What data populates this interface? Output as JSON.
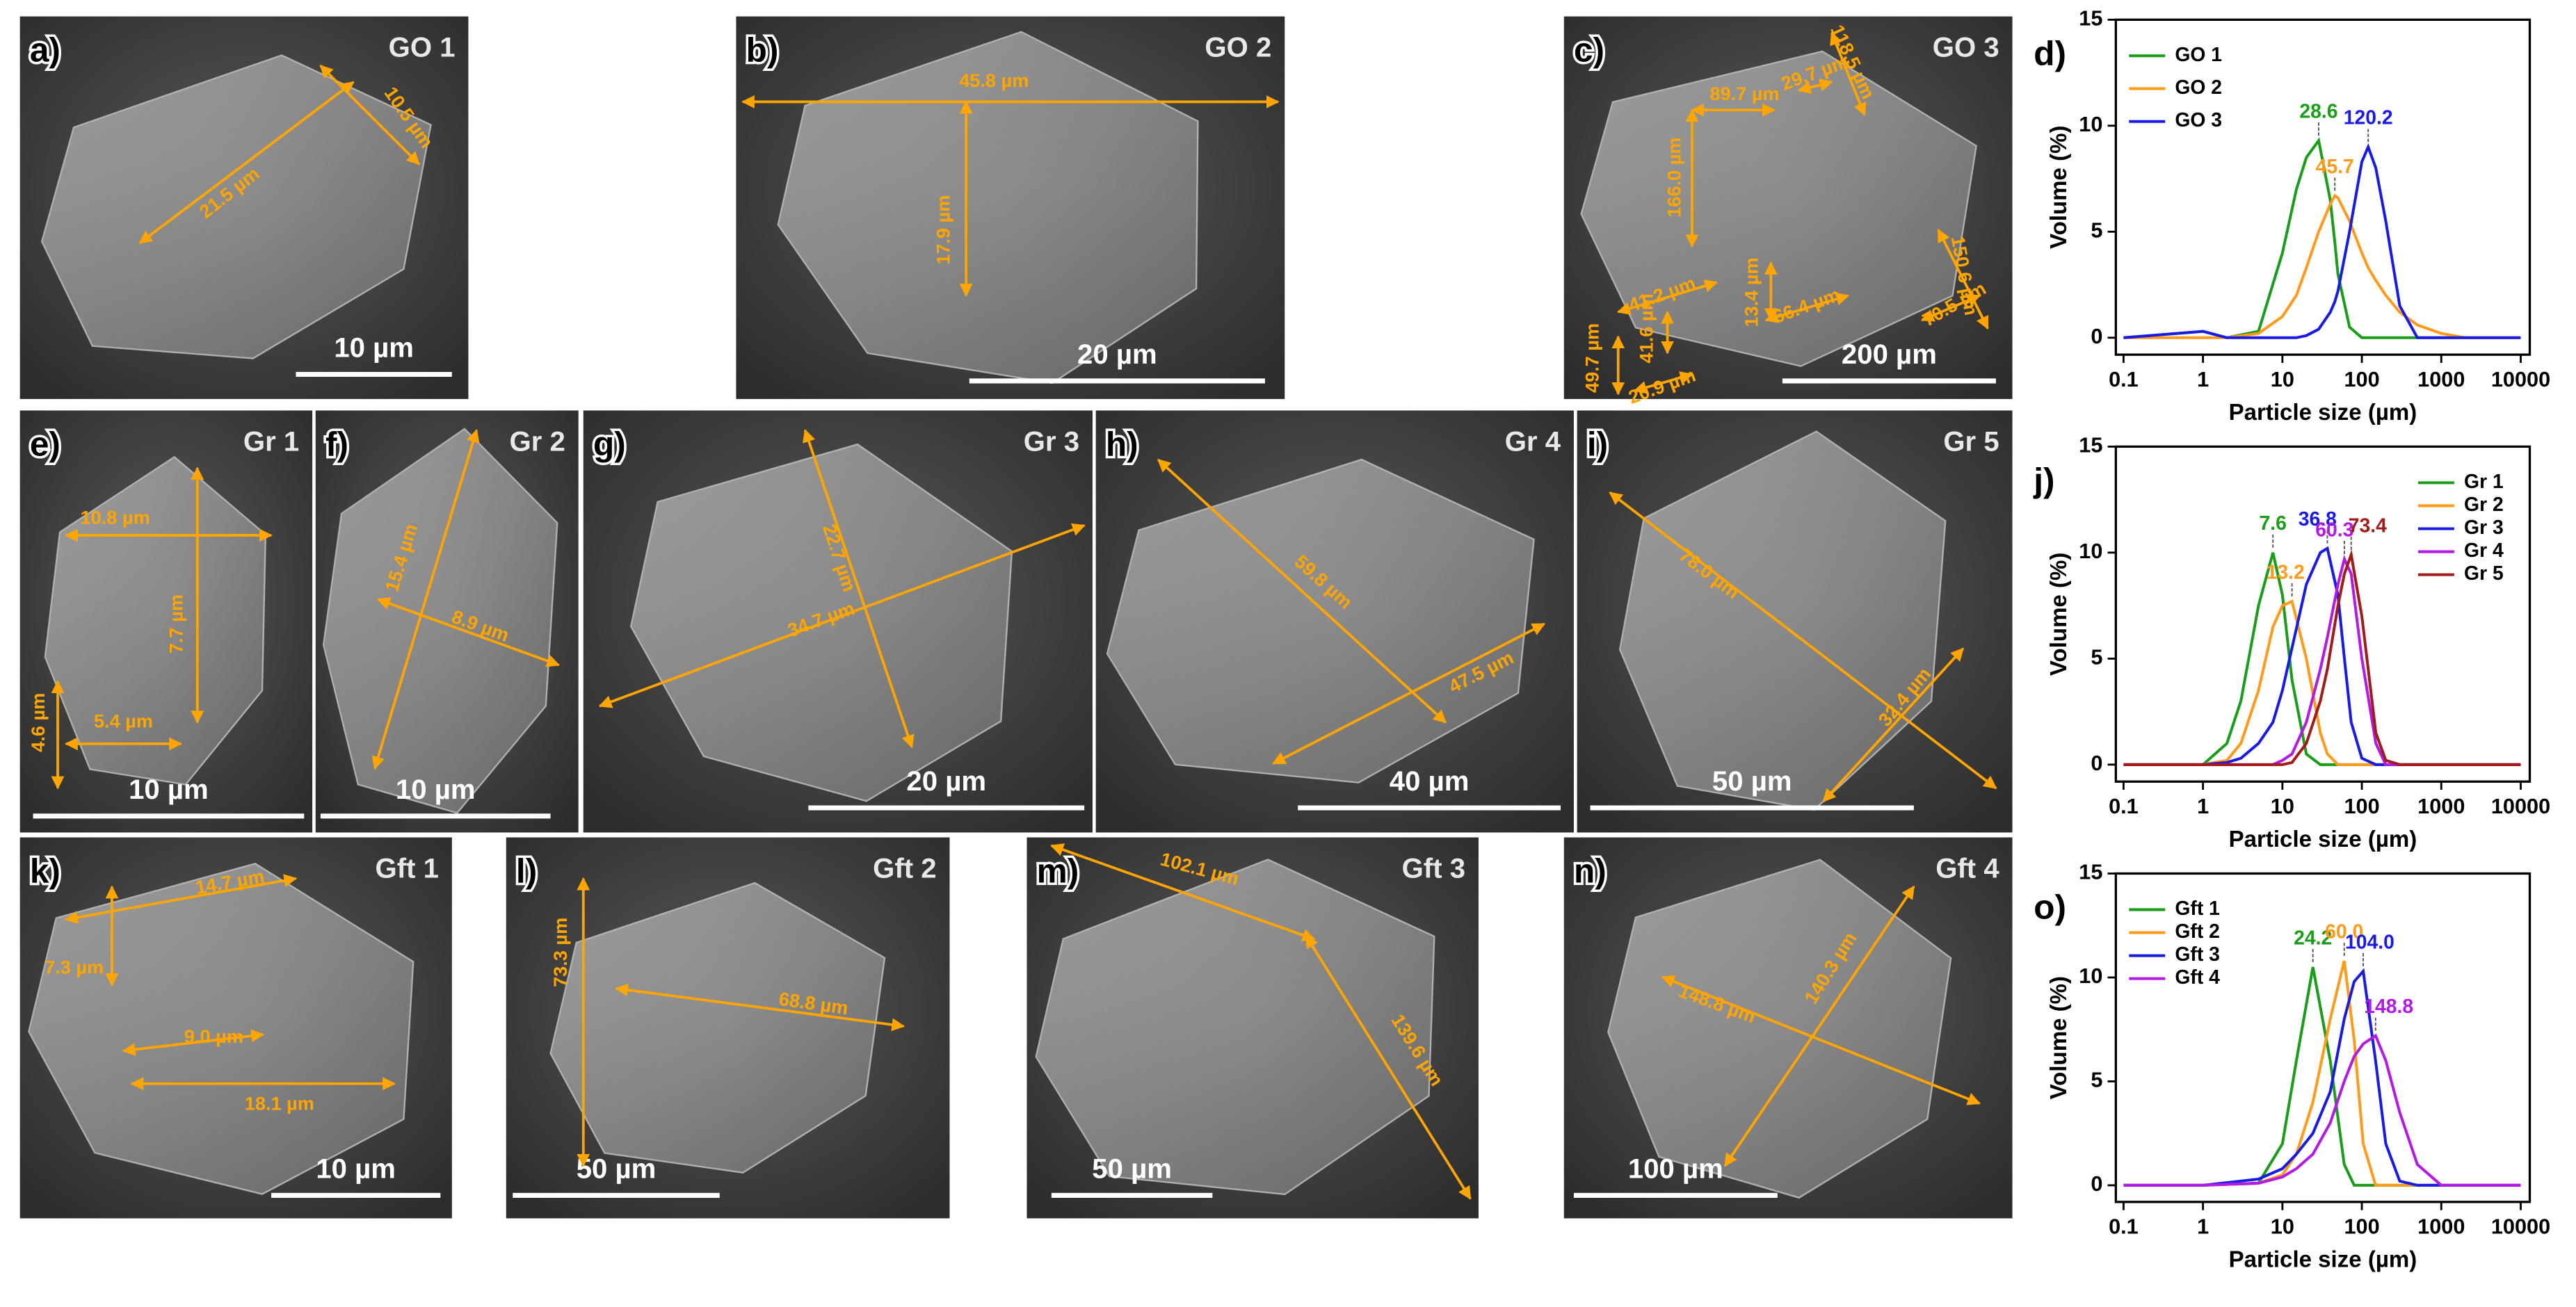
{
  "panels": [
    {
      "label": "a)",
      "sample": "GO 1",
      "scale_bar": "10 µm",
      "measurements": [
        "21.5 µm",
        "10.5 µm"
      ]
    },
    {
      "label": "b)",
      "sample": "GO 2",
      "scale_bar": "20 µm",
      "measurements": [
        "45.8 µm",
        "17.9 µm"
      ]
    },
    {
      "label": "c)",
      "sample": "GO 3",
      "scale_bar": "200 µm",
      "measurements": [
        "89.7 µm",
        "29.7 µm",
        "118.5 µm",
        "166.0 µm",
        "41.2 µm",
        "41.6 µm",
        "13.4 µm",
        "66.4 µm",
        "150.6 µm",
        "70.5 µm",
        "49.7 µm",
        "20.9 µm"
      ]
    },
    {
      "label": "e)",
      "sample": "Gr 1",
      "scale_bar": "10 µm",
      "measurements": [
        "10.8 µm",
        "7.7 µm",
        "4.6 µm",
        "5.4 µm"
      ]
    },
    {
      "label": "f)",
      "sample": "Gr 2",
      "scale_bar": "10 µm",
      "measurements": [
        "15.4 µm",
        "8.9 µm"
      ]
    },
    {
      "label": "g)",
      "sample": "Gr 3",
      "scale_bar": "20 µm",
      "measurements": [
        "22.7 µm",
        "34.7 µm"
      ]
    },
    {
      "label": "h)",
      "sample": "Gr 4",
      "scale_bar": "40 µm",
      "measurements": [
        "59.8 µm",
        "47.5 µm"
      ]
    },
    {
      "label": "i)",
      "sample": "Gr 5",
      "scale_bar": "50 µm",
      "measurements": [
        "78.0 µm",
        "32.4 µm"
      ]
    },
    {
      "label": "k)",
      "sample": "Gft 1",
      "scale_bar": "10 µm",
      "measurements": [
        "14.7 µm",
        "7.3 µm",
        "9.0 µm",
        "18.1 µm"
      ]
    },
    {
      "label": "l)",
      "sample": "Gft 2",
      "scale_bar": "50 µm",
      "measurements": [
        "73.3 µm",
        "68.8 µm"
      ]
    },
    {
      "label": "m)",
      "sample": "Gft 3",
      "scale_bar": "50 µm",
      "measurements": [
        "102.1 µm",
        "139.6 µm"
      ]
    },
    {
      "label": "n)",
      "sample": "Gft 4",
      "scale_bar": "100 µm",
      "measurements": [
        "140.3 µm",
        "148.8 µm"
      ]
    }
  ],
  "chart_data": [
    {
      "type": "line",
      "label": "d)",
      "xlabel": "Particle size (µm)",
      "ylabel": "Volume (%)",
      "log_x": true,
      "grid": false,
      "legend": "upper left",
      "xlim": [
        0.08,
        13000
      ],
      "xticks": [
        0.1,
        1,
        10,
        100,
        1000,
        10000
      ],
      "ylim": [
        -0.8,
        15
      ],
      "yticks": [
        0,
        5,
        10,
        15
      ],
      "x": [
        0.1,
        1,
        2,
        5,
        10,
        15,
        20,
        28.6,
        40,
        45.7,
        50,
        70,
        100,
        120.2,
        150,
        200,
        300,
        500,
        1000,
        2000,
        10000
      ],
      "series": [
        {
          "name": "GO 1",
          "color": "#1a9e1a",
          "peak": 28.6,
          "peak_label": "28.6",
          "values": [
            0,
            0.3,
            0,
            0.3,
            4,
            7,
            8.5,
            9.3,
            6.5,
            4.5,
            3,
            0.5,
            0,
            0,
            0,
            0,
            0,
            0,
            0,
            0,
            0
          ]
        },
        {
          "name": "GO 2",
          "color": "#ff9a1a",
          "peak": 45.7,
          "peak_label": "45.7",
          "values": [
            0,
            0,
            0,
            0.2,
            1,
            2,
            3.3,
            5,
            6.3,
            6.7,
            6.6,
            5.5,
            4,
            3.3,
            2.7,
            2,
            1.2,
            0.6,
            0.2,
            0,
            0
          ]
        },
        {
          "name": "GO 3",
          "color": "#1a1ae6",
          "peak": 120.2,
          "peak_label": "120.2",
          "values": [
            0,
            0.3,
            0,
            0,
            0,
            0,
            0.1,
            0.4,
            1.2,
            1.7,
            2.2,
            5,
            8.3,
            9,
            8,
            5.5,
            1.5,
            0,
            0,
            0,
            0
          ]
        }
      ]
    },
    {
      "type": "line",
      "label": "j)",
      "xlabel": "Particle size (µm)",
      "ylabel": "Volume (%)",
      "log_x": true,
      "grid": false,
      "legend": "upper right",
      "xlim": [
        0.08,
        13000
      ],
      "xticks": [
        0.1,
        1,
        10,
        100,
        1000,
        10000
      ],
      "ylim": [
        -0.8,
        15
      ],
      "yticks": [
        0,
        5,
        10,
        15
      ],
      "x": [
        0.1,
        1,
        2,
        3,
        5,
        7.6,
        10,
        13.2,
        20,
        30,
        36.8,
        50,
        60.3,
        73.4,
        100,
        150,
        200,
        300,
        1000,
        10000
      ],
      "series": [
        {
          "name": "Gr 1",
          "color": "#1a9e1a",
          "peak": 7.6,
          "peak_label": "7.6",
          "values": [
            0,
            0,
            1,
            3,
            7.5,
            10,
            8,
            4,
            0.5,
            0,
            0,
            0,
            0,
            0,
            0,
            0,
            0,
            0,
            0,
            0
          ]
        },
        {
          "name": "Gr 2",
          "color": "#ff9a1a",
          "peak": 13.2,
          "peak_label": "13.2",
          "values": [
            0,
            0,
            0.2,
            1,
            3.5,
            6.5,
            7.5,
            7.7,
            5,
            1.5,
            0.5,
            0,
            0,
            0,
            0,
            0,
            0,
            0,
            0,
            0
          ]
        },
        {
          "name": "Gr 3",
          "color": "#1a1ae6",
          "peak": 36.8,
          "peak_label": "36.8",
          "values": [
            0,
            0,
            0.1,
            0.3,
            1,
            2,
            3.5,
            5.5,
            8.5,
            10,
            10.2,
            8,
            5,
            2,
            0.3,
            0,
            0,
            0,
            0,
            0
          ]
        },
        {
          "name": "Gr 4",
          "color": "#b31ae6",
          "peak": 60.3,
          "peak_label": "60.3",
          "values": [
            0,
            0,
            0,
            0,
            0,
            0,
            0.2,
            0.5,
            2,
            4.5,
            6,
            8.5,
            9.7,
            9,
            5,
            1,
            0,
            0,
            0,
            0
          ]
        },
        {
          "name": "Gr 5",
          "color": "#a31a1a",
          "peak": 73.4,
          "peak_label": "73.4",
          "values": [
            0,
            0,
            0,
            0,
            0,
            0,
            0,
            0.1,
            1,
            3,
            4.5,
            7.5,
            9,
            9.9,
            7,
            1.5,
            0.2,
            0,
            0,
            0
          ]
        }
      ]
    },
    {
      "type": "line",
      "label": "o)",
      "xlabel": "Particle size (µm)",
      "ylabel": "Volume (%)",
      "log_x": true,
      "grid": false,
      "legend": "upper left",
      "xlim": [
        0.08,
        13000
      ],
      "xticks": [
        0.1,
        1,
        10,
        100,
        1000,
        10000
      ],
      "ylim": [
        -0.8,
        15
      ],
      "yticks": [
        0,
        5,
        10,
        15
      ],
      "x": [
        0.1,
        1,
        5,
        10,
        15,
        24.2,
        40,
        60,
        80,
        104,
        148.8,
        200,
        300,
        500,
        1000,
        10000
      ],
      "series": [
        {
          "name": "Gft 1",
          "color": "#1a9e1a",
          "peak": 24.2,
          "peak_label": "24.2",
          "values": [
            0,
            0,
            0.1,
            2,
            6,
            10.5,
            6,
            1,
            0,
            0,
            0,
            0,
            0,
            0,
            0,
            0
          ]
        },
        {
          "name": "Gft 2",
          "color": "#ff9a1a",
          "peak": 60.0,
          "peak_label": "60.0",
          "values": [
            0,
            0,
            0.1,
            0.5,
            1.5,
            4,
            8,
            10.8,
            7,
            2,
            0,
            0,
            0,
            0,
            0,
            0
          ]
        },
        {
          "name": "Gft 3",
          "color": "#1a1ae6",
          "peak": 104.0,
          "peak_label": "104.0",
          "values": [
            0,
            0,
            0.3,
            0.8,
            1.5,
            2.5,
            4.5,
            8,
            9.8,
            10.3,
            6,
            2,
            0.2,
            0,
            0,
            0
          ]
        },
        {
          "name": "Gft 4",
          "color": "#b31ae6",
          "peak": 148.8,
          "peak_label": "148.8",
          "values": [
            0,
            0,
            0.1,
            0.4,
            0.8,
            1.5,
            3,
            5,
            6.2,
            6.8,
            7.2,
            6,
            3.5,
            1,
            0,
            0
          ]
        }
      ]
    }
  ]
}
